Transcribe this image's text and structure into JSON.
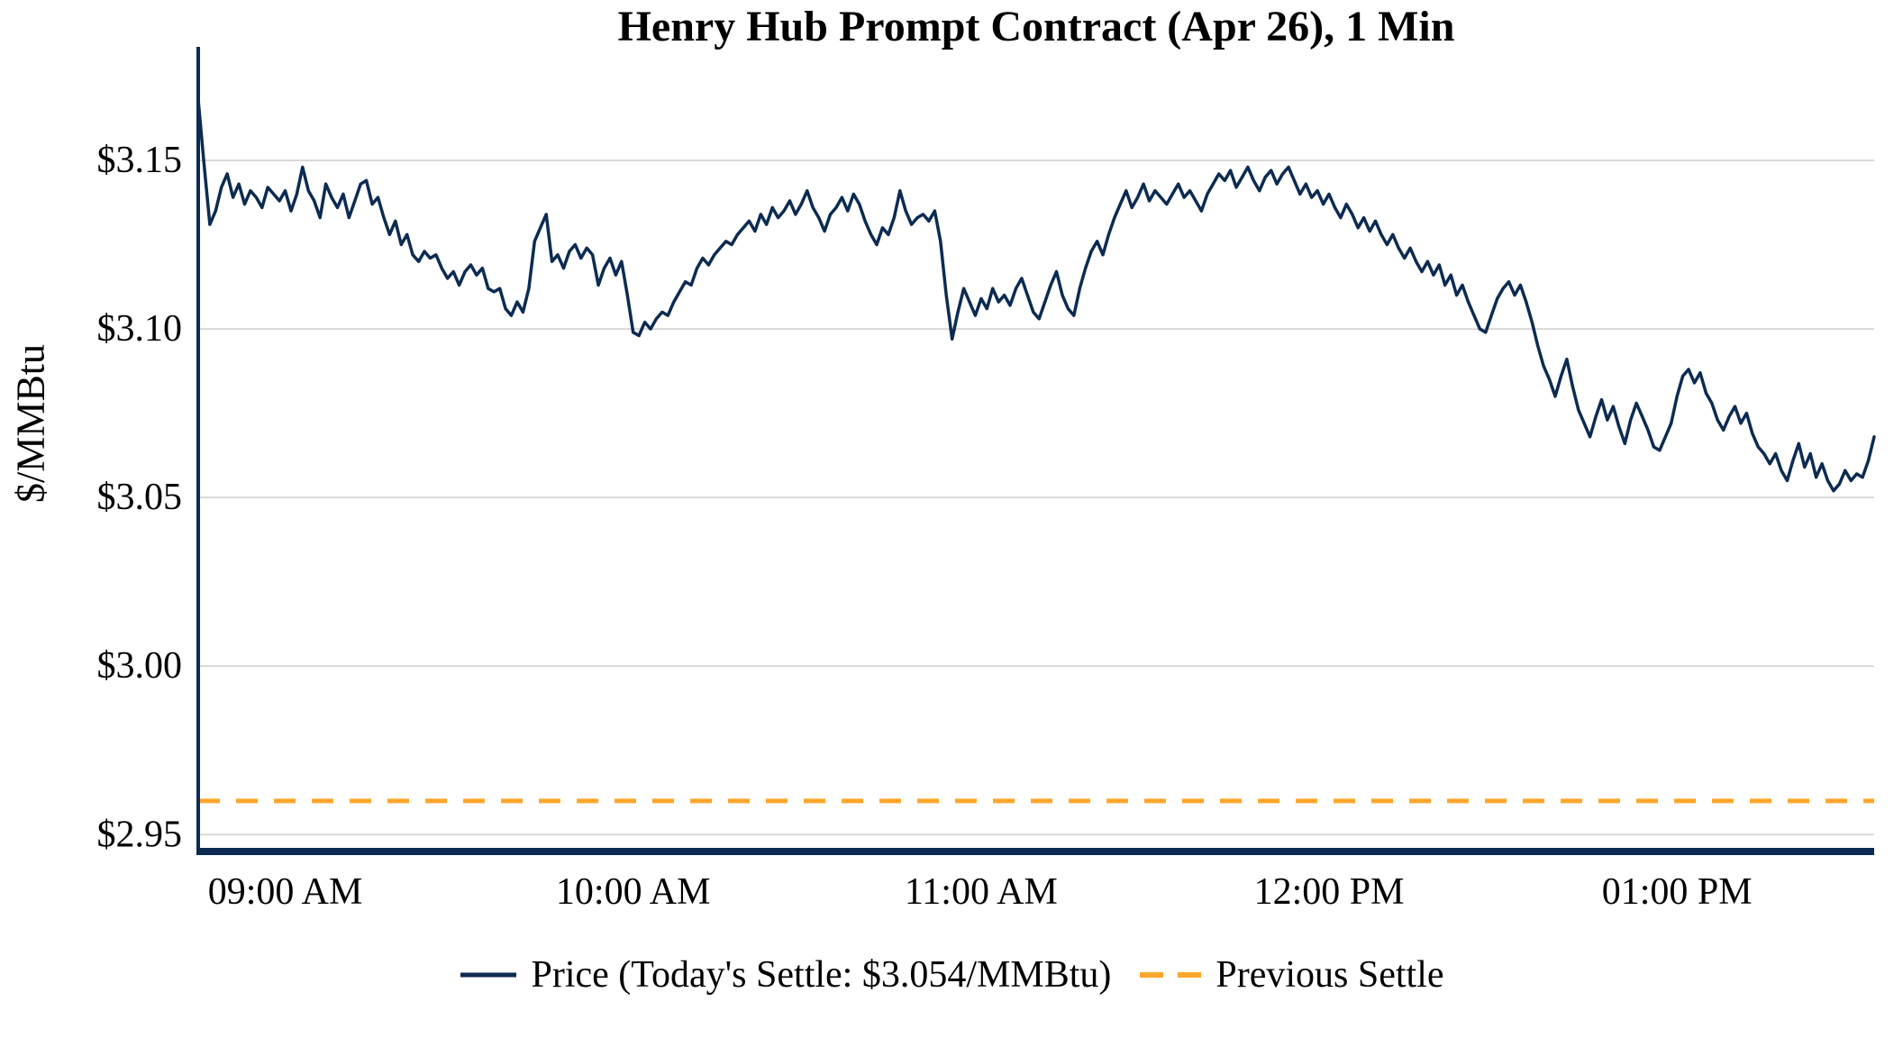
{
  "title": "Henry Hub Prompt Contract (Apr 26), 1 Min",
  "y_axis_label": "$/MMBtu",
  "legend": {
    "price_label": "Price (Today's Settle: $3.054/MMBtu)",
    "prev_settle_label": "Previous Settle"
  },
  "colors": {
    "price_line": "#0c2b52",
    "prev_settle_line": "#ffa62b",
    "grid": "#d9d9d9",
    "axis": "#0c2b52",
    "text": "#000000"
  },
  "chart_data": {
    "type": "line",
    "title": "Henry Hub Prompt Contract (Apr 26), 1 Min",
    "xlabel": "",
    "ylabel": "$/MMBtu",
    "ylim": [
      2.945,
      3.181
    ],
    "grid": "horizontal",
    "legend_position": "bottom",
    "today_settle": 3.054,
    "x_start_label": "08:45 AM",
    "x_start_minutes": 525,
    "x_end_minutes": 814,
    "x_interval_minutes": 1,
    "x_ticks": [
      {
        "label": "09:00 AM",
        "minutes": 540
      },
      {
        "label": "10:00 AM",
        "minutes": 600
      },
      {
        "label": "11:00 AM",
        "minutes": 660
      },
      {
        "label": "12:00 PM",
        "minutes": 720
      },
      {
        "label": "01:00 PM",
        "minutes": 780
      }
    ],
    "y_ticks": [
      {
        "label": "$3.15",
        "value": 3.15
      },
      {
        "label": "$3.10",
        "value": 3.1
      },
      {
        "label": "$3.05",
        "value": 3.05
      },
      {
        "label": "$3.00",
        "value": 3.0
      },
      {
        "label": "$2.95",
        "value": 2.95
      }
    ],
    "series": [
      {
        "name": "Price",
        "type": "line",
        "color": "#0c2b52",
        "values": [
          3.168,
          3.149,
          3.131,
          3.135,
          3.142,
          3.146,
          3.139,
          3.143,
          3.137,
          3.141,
          3.139,
          3.136,
          3.142,
          3.14,
          3.138,
          3.141,
          3.135,
          3.14,
          3.148,
          3.141,
          3.138,
          3.133,
          3.143,
          3.139,
          3.136,
          3.14,
          3.133,
          3.138,
          3.143,
          3.144,
          3.137,
          3.139,
          3.133,
          3.128,
          3.132,
          3.125,
          3.128,
          3.122,
          3.12,
          3.123,
          3.121,
          3.122,
          3.118,
          3.115,
          3.117,
          3.113,
          3.117,
          3.119,
          3.116,
          3.118,
          3.112,
          3.111,
          3.112,
          3.106,
          3.104,
          3.108,
          3.105,
          3.112,
          3.126,
          3.13,
          3.134,
          3.12,
          3.122,
          3.118,
          3.123,
          3.125,
          3.121,
          3.124,
          3.122,
          3.113,
          3.118,
          3.121,
          3.116,
          3.12,
          3.11,
          3.099,
          3.098,
          3.102,
          3.1,
          3.103,
          3.105,
          3.104,
          3.108,
          3.111,
          3.114,
          3.113,
          3.118,
          3.121,
          3.119,
          3.122,
          3.124,
          3.126,
          3.125,
          3.128,
          3.13,
          3.132,
          3.129,
          3.134,
          3.131,
          3.136,
          3.133,
          3.135,
          3.138,
          3.134,
          3.137,
          3.141,
          3.136,
          3.133,
          3.129,
          3.134,
          3.136,
          3.139,
          3.135,
          3.14,
          3.137,
          3.132,
          3.128,
          3.125,
          3.13,
          3.128,
          3.133,
          3.141,
          3.135,
          3.131,
          3.133,
          3.134,
          3.132,
          3.135,
          3.126,
          3.11,
          3.097,
          3.105,
          3.112,
          3.108,
          3.104,
          3.109,
          3.106,
          3.112,
          3.108,
          3.11,
          3.107,
          3.112,
          3.115,
          3.11,
          3.105,
          3.103,
          3.108,
          3.113,
          3.117,
          3.11,
          3.106,
          3.104,
          3.112,
          3.118,
          3.123,
          3.126,
          3.122,
          3.128,
          3.133,
          3.137,
          3.141,
          3.136,
          3.139,
          3.143,
          3.138,
          3.141,
          3.139,
          3.137,
          3.14,
          3.143,
          3.139,
          3.141,
          3.138,
          3.135,
          3.14,
          3.143,
          3.146,
          3.144,
          3.147,
          3.142,
          3.145,
          3.148,
          3.144,
          3.141,
          3.145,
          3.147,
          3.143,
          3.146,
          3.148,
          3.144,
          3.14,
          3.143,
          3.139,
          3.141,
          3.137,
          3.14,
          3.136,
          3.133,
          3.137,
          3.134,
          3.13,
          3.133,
          3.129,
          3.132,
          3.128,
          3.125,
          3.128,
          3.124,
          3.121,
          3.124,
          3.12,
          3.117,
          3.12,
          3.116,
          3.119,
          3.113,
          3.116,
          3.11,
          3.113,
          3.108,
          3.104,
          3.1,
          3.099,
          3.104,
          3.109,
          3.112,
          3.114,
          3.11,
          3.113,
          3.108,
          3.102,
          3.095,
          3.089,
          3.085,
          3.08,
          3.086,
          3.091,
          3.083,
          3.076,
          3.072,
          3.068,
          3.074,
          3.079,
          3.073,
          3.077,
          3.071,
          3.066,
          3.073,
          3.078,
          3.074,
          3.07,
          3.065,
          3.064,
          3.068,
          3.072,
          3.08,
          3.086,
          3.088,
          3.084,
          3.087,
          3.081,
          3.078,
          3.073,
          3.07,
          3.074,
          3.077,
          3.072,
          3.075,
          3.069,
          3.065,
          3.063,
          3.06,
          3.063,
          3.058,
          3.055,
          3.061,
          3.066,
          3.059,
          3.063,
          3.056,
          3.06,
          3.055,
          3.052,
          3.054,
          3.058,
          3.055,
          3.057,
          3.056,
          3.061,
          3.068
        ]
      },
      {
        "name": "Previous Settle",
        "type": "hline",
        "style": "dashed",
        "color": "#ffa62b",
        "value": 2.96
      }
    ]
  }
}
